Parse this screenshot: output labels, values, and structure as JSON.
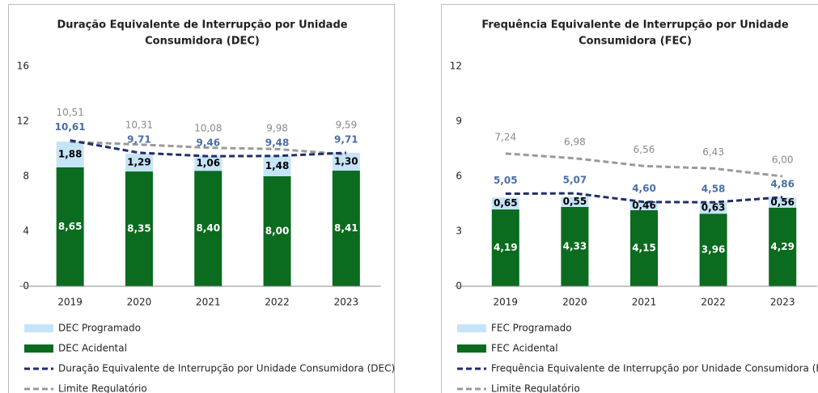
{
  "chart_data": [
    {
      "type": "bar",
      "title": [
        "Duração Equivalente de Interrupção por Unidade",
        "Consumidora (DEC)"
      ],
      "categories": [
        "2019",
        "2020",
        "2021",
        "2022",
        "2023"
      ],
      "ylim": [
        0,
        16
      ],
      "yticks": [
        0,
        4,
        8,
        12,
        16
      ],
      "series": [
        {
          "name": "DEC Programado",
          "type": "bar",
          "color": "#c6e4f7",
          "label_color": "#000000",
          "values": [
            1.88,
            1.29,
            1.06,
            1.48,
            1.3
          ],
          "value_labels": [
            "1,88",
            "1,29",
            "1,06",
            "1,48",
            "1,30"
          ]
        },
        {
          "name": "DEC Acidental",
          "type": "bar",
          "color": "#0b6b1f",
          "label_color": "#ffffff",
          "values": [
            8.65,
            8.35,
            8.4,
            8.0,
            8.41
          ],
          "value_labels": [
            "8,65",
            "8,35",
            "8,40",
            "8,00",
            "8,41"
          ]
        },
        {
          "name": "Duração Equivalente de Interrupção por Unidade Consumidora (DEC)",
          "type": "line",
          "color": "#1f2d6b",
          "label_color": "#4a6fa5",
          "values": [
            10.61,
            9.71,
            9.46,
            9.48,
            9.71
          ],
          "value_labels": [
            "10,61",
            "9,71",
            "9,46",
            "9,48",
            "9,71"
          ]
        },
        {
          "name": "Limite Regulatório",
          "type": "line",
          "color": "#9a9a9a",
          "label_color": "#8a8a8a",
          "values": [
            10.51,
            10.31,
            10.08,
            9.98,
            9.59
          ],
          "value_labels": [
            "10,51",
            "10,31",
            "10,08",
            "9,98",
            "9,59"
          ]
        }
      ]
    },
    {
      "type": "bar",
      "title": [
        "Frequência Equivalente de Interrupção por Unidade",
        "Consumidora (FEC)"
      ],
      "categories": [
        "2019",
        "2020",
        "2021",
        "2022",
        "2023"
      ],
      "ylim": [
        0,
        12
      ],
      "yticks": [
        0,
        3,
        6,
        9,
        12
      ],
      "series": [
        {
          "name": "FEC Programado",
          "type": "bar",
          "color": "#c6e4f7",
          "label_color": "#000000",
          "values": [
            0.65,
            0.55,
            0.46,
            0.63,
            0.56
          ],
          "value_labels": [
            "0,65",
            "0,55",
            "0,46",
            "0,63",
            "0,56"
          ]
        },
        {
          "name": "FEC Acidental",
          "type": "bar",
          "color": "#0b6b1f",
          "label_color": "#ffffff",
          "values": [
            4.19,
            4.33,
            4.15,
            3.96,
            4.29
          ],
          "value_labels": [
            "4,19",
            "4,33",
            "4,15",
            "3,96",
            "4,29"
          ]
        },
        {
          "name": "Frequência Equivalente de Interrupção por Unidade Consumidora (FEC",
          "type": "line",
          "color": "#1f2d6b",
          "label_color": "#4a6fa5",
          "values": [
            5.05,
            5.07,
            4.6,
            4.58,
            4.86
          ],
          "value_labels": [
            "5,05",
            "5,07",
            "4,60",
            "4,58",
            "4,86"
          ]
        },
        {
          "name": "Limite Regulatório",
          "type": "line",
          "color": "#9a9a9a",
          "label_color": "#8a8a8a",
          "values": [
            7.24,
            6.98,
            6.56,
            6.43,
            6.0
          ],
          "value_labels": [
            "7,24",
            "6,98",
            "6,56",
            "6,43",
            "6,00"
          ]
        }
      ]
    }
  ]
}
